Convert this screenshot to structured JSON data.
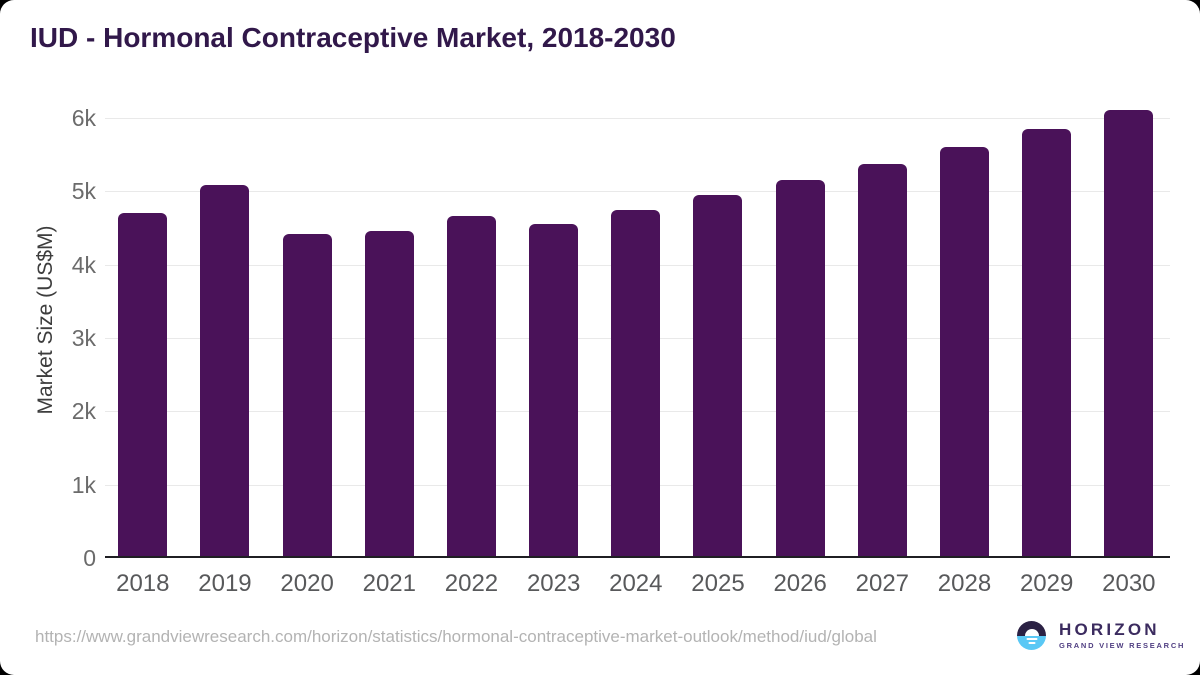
{
  "title": "IUD - Hormonal Contraceptive Market, 2018-2030",
  "chart_data": {
    "type": "bar",
    "title": "IUD - Hormonal Contraceptive Market, 2018-2030",
    "categories": [
      "2018",
      "2019",
      "2020",
      "2021",
      "2022",
      "2023",
      "2024",
      "2025",
      "2026",
      "2027",
      "2028",
      "2029",
      "2030"
    ],
    "values": [
      4700,
      5080,
      4420,
      4460,
      4670,
      4560,
      4740,
      4950,
      5150,
      5370,
      5600,
      5850,
      6110
    ],
    "xlabel": "",
    "ylabel": "Market Size (US$M)",
    "ylim": [
      0,
      6400
    ],
    "ytick_values": [
      0,
      1000,
      2000,
      3000,
      4000,
      5000,
      6000
    ],
    "ytick_labels": [
      "0",
      "1k",
      "2k",
      "3k",
      "4k",
      "5k",
      "6k"
    ],
    "grid": true,
    "legend": false,
    "bar_color": "#4a1259"
  },
  "footer": {
    "source_url": "https://www.grandviewresearch.com/horizon/statistics/hormonal-contraceptive-market-outlook/method/iud/global",
    "logo": {
      "name": "HORIZON",
      "subtitle": "GRAND VIEW RESEARCH"
    }
  },
  "colors": {
    "title_text": "#31184a",
    "bar": "#4a1259",
    "gridline": "#e9e9e9",
    "axis_tick_text": "#6b6b6b",
    "x_tick_text": "#58595b",
    "url_text": "#b3b3b3",
    "logo_dark": "#2b2144",
    "logo_blue": "#5ac8f5"
  }
}
